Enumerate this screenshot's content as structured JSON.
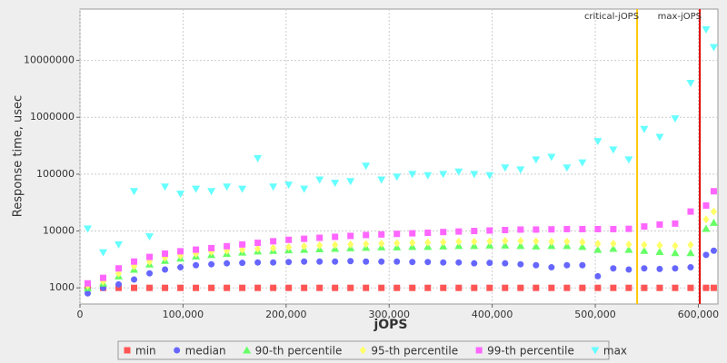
{
  "chart_data": {
    "type": "scatter",
    "xlabel": "jOPS",
    "ylabel": "Response time, usec",
    "xlim": [
      0,
      619000
    ],
    "ylim": [
      520,
      80000000
    ],
    "log_y": true,
    "grid": true,
    "xticks": [
      0,
      {
        "value": 100000,
        "label": "100,000"
      },
      {
        "value": 200000,
        "label": "200,000"
      },
      {
        "value": 300000,
        "label": "300,000"
      },
      {
        "value": 400000,
        "label": "400,000"
      },
      {
        "value": 500000,
        "label": "500,000"
      },
      {
        "value": 600000,
        "label": "600,000"
      }
    ],
    "yticks": [
      1000,
      10000,
      100000,
      1000000,
      10000000
    ],
    "x": [
      7500,
      22500,
      37500,
      52500,
      67500,
      82500,
      97500,
      112500,
      127500,
      142500,
      157500,
      172500,
      187500,
      202500,
      217500,
      232500,
      247500,
      262500,
      277500,
      292500,
      307500,
      322500,
      337500,
      352500,
      367500,
      382500,
      397500,
      412500,
      427500,
      442500,
      457500,
      472500,
      487500,
      502500,
      517500,
      532500,
      547500,
      562500,
      577500,
      592500,
      607500,
      615000
    ],
    "series": [
      {
        "name": "min",
        "color": "#ff5555",
        "marker": "square",
        "values": [
          1000,
          1000,
          1000,
          1000,
          1000,
          1000,
          1000,
          1000,
          1000,
          1000,
          1000,
          1000,
          1000,
          1000,
          1000,
          1000,
          1000,
          1000,
          1000,
          1000,
          1000,
          1000,
          1000,
          1000,
          1000,
          1000,
          1000,
          1000,
          1000,
          1000,
          1000,
          1000,
          1000,
          1000,
          1000,
          1000,
          1000,
          1000,
          1000,
          1000,
          1000,
          1000
        ]
      },
      {
        "name": "median",
        "color": "#6666ff",
        "marker": "circle",
        "values": [
          800,
          1000,
          1150,
          1400,
          1800,
          2100,
          2300,
          2500,
          2600,
          2700,
          2750,
          2800,
          2800,
          2850,
          2900,
          2900,
          2900,
          2950,
          2900,
          2900,
          2900,
          2850,
          2850,
          2800,
          2800,
          2700,
          2750,
          2700,
          2600,
          2500,
          2300,
          2500,
          2500,
          1600,
          2200,
          2100,
          2200,
          2150,
          2200,
          2300,
          3800,
          4500
        ]
      },
      {
        "name": "90-th percentile",
        "color": "#66ff66",
        "marker": "triangle",
        "values": [
          1000,
          1200,
          1600,
          2100,
          2600,
          3000,
          3300,
          3600,
          3800,
          4000,
          4200,
          4400,
          4500,
          4600,
          4700,
          4800,
          4900,
          5000,
          5100,
          5200,
          5200,
          5300,
          5300,
          5400,
          5500,
          5500,
          5600,
          5600,
          5500,
          5400,
          5500,
          5500,
          5300,
          4700,
          4900,
          4700,
          4500,
          4300,
          4100,
          4100,
          11000,
          14000
        ]
      },
      {
        "name": "95-th percentile",
        "color": "#ffff66",
        "marker": "diamond",
        "values": [
          1100,
          1300,
          1800,
          2400,
          2900,
          3400,
          3700,
          4000,
          4300,
          4500,
          4700,
          4900,
          5000,
          5200,
          5400,
          5600,
          5700,
          5800,
          5900,
          6000,
          6100,
          6200,
          6300,
          6400,
          6500,
          6500,
          6600,
          6700,
          6700,
          6600,
          6500,
          6500,
          6400,
          6000,
          6000,
          5800,
          5700,
          5600,
          5500,
          5700,
          16000,
          22000
        ]
      },
      {
        "name": "99-th percentile",
        "color": "#ff66ff",
        "marker": "square",
        "values": [
          1200,
          1500,
          2200,
          2900,
          3500,
          4000,
          4400,
          4700,
          5000,
          5400,
          5800,
          6200,
          6600,
          7000,
          7300,
          7600,
          7900,
          8200,
          8500,
          8700,
          8900,
          9100,
          9300,
          9600,
          9800,
          10000,
          10200,
          10400,
          10600,
          10600,
          10700,
          10800,
          10800,
          10800,
          10800,
          10900,
          12000,
          13000,
          13500,
          22000,
          28000,
          50000
        ]
      },
      {
        "name": "max",
        "color": "#66ffff",
        "marker": "triangle-down",
        "values": [
          11000,
          4200,
          5800,
          50000,
          8000,
          60000,
          45000,
          55000,
          50000,
          60000,
          55000,
          190000,
          60000,
          65000,
          55000,
          80000,
          70000,
          75000,
          140000,
          80000,
          90000,
          100000,
          95000,
          100000,
          110000,
          100000,
          95000,
          130000,
          120000,
          180000,
          200000,
          130000,
          160000,
          380000,
          270000,
          180000,
          620000,
          450000,
          950000,
          4000000,
          35000000,
          17000000
        ]
      }
    ],
    "vlines": [
      {
        "label": "critical-jOPS",
        "value": 540600,
        "color": "#ffc800"
      },
      {
        "label": "max-jOPS",
        "value": 601400,
        "color": "#e00000"
      }
    ]
  }
}
